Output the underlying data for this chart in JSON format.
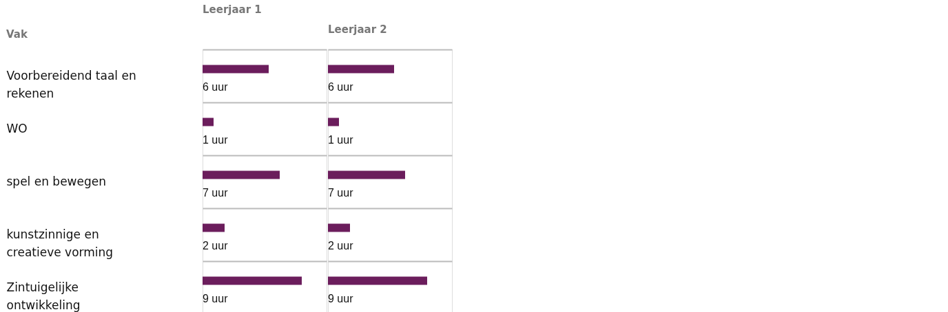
{
  "chart_data": [
    {
      "type": "bar",
      "orientation": "horizontal",
      "title": "Leerjaar 1",
      "ylabel": "Vak",
      "grid": "y",
      "tick_labels": "y",
      "categories": [
        "Voorbereidend taal en rekenen",
        "WO",
        "spel en bewegen",
        "kunstzinnige en creatieve vorming",
        "Zintuigelijke ontwikkeling"
      ],
      "values": [
        6,
        1,
        7,
        2,
        9
      ],
      "color": "#6b1d5c",
      "value_labels": [
        "6 uur",
        "1 uur",
        "7 uur",
        "2 uur",
        "9 uur"
      ]
    },
    {
      "type": "bar",
      "orientation": "horizontal",
      "title": "Leerjaar 2",
      "grid": "y",
      "tick_labels": false,
      "categories": [
        null,
        null,
        null,
        null,
        null
      ],
      "values": [
        6,
        1,
        7,
        2,
        9
      ],
      "color": "#6b1d5c",
      "value_labels": [
        "6 uur",
        "1 uur",
        "7 uur",
        "2 uur",
        "9 uur"
      ]
    }
  ]
}
